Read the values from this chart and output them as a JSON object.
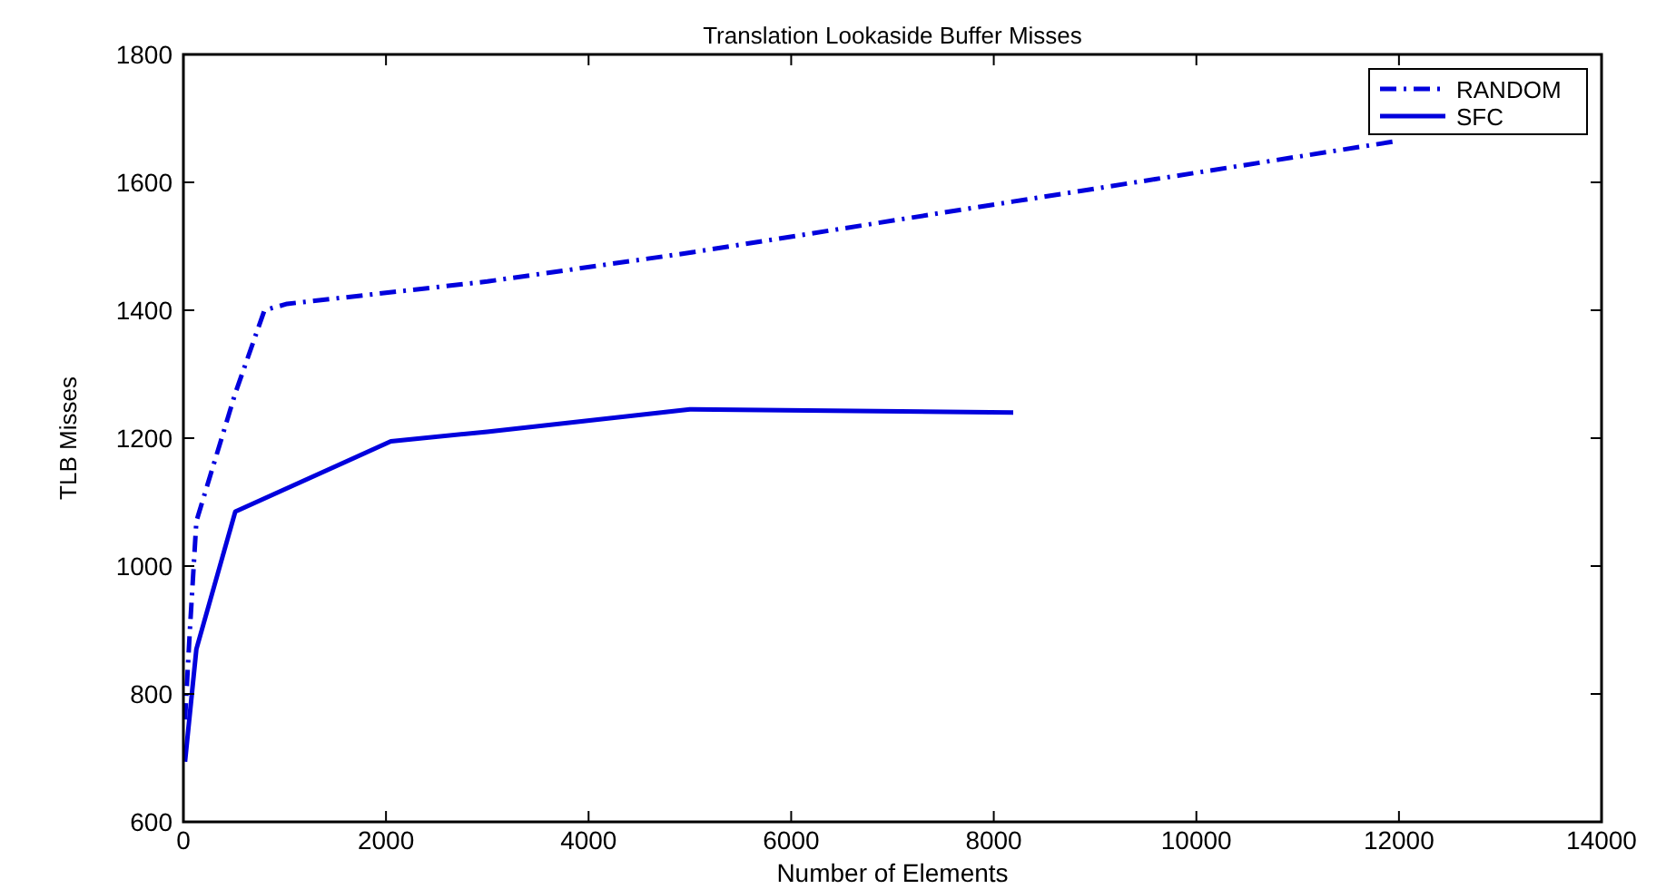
{
  "chart_data": {
    "type": "line",
    "title": "Translation Lookaside Buffer Misses",
    "xlabel": "Number of Elements",
    "ylabel": "TLB Misses",
    "xlim": [
      0,
      14000
    ],
    "xticks": [
      0,
      2000,
      4000,
      6000,
      8000,
      10000,
      12000,
      14000
    ],
    "ylim": [
      600,
      1800
    ],
    "yticks": [
      600,
      800,
      1000,
      1200,
      1400,
      1600,
      1800
    ],
    "grid": false,
    "legend": "top right",
    "series": [
      {
        "name": "RANDOM",
        "color": "#0000dd",
        "line_style": "dashdot",
        "x": [
          16,
          64,
          128,
          512,
          800,
          1024,
          3000,
          5000,
          8192,
          12000
        ],
        "values": [
          760,
          900,
          1070,
          1270,
          1400,
          1410,
          1445,
          1490,
          1570,
          1665
        ]
      },
      {
        "name": "SFC",
        "color": "#0000dd",
        "line_style": "solid",
        "x": [
          16,
          128,
          512,
          2048,
          3000,
          5000,
          8192
        ],
        "values": [
          694,
          870,
          1085,
          1195,
          1210,
          1245,
          1240
        ]
      }
    ]
  }
}
